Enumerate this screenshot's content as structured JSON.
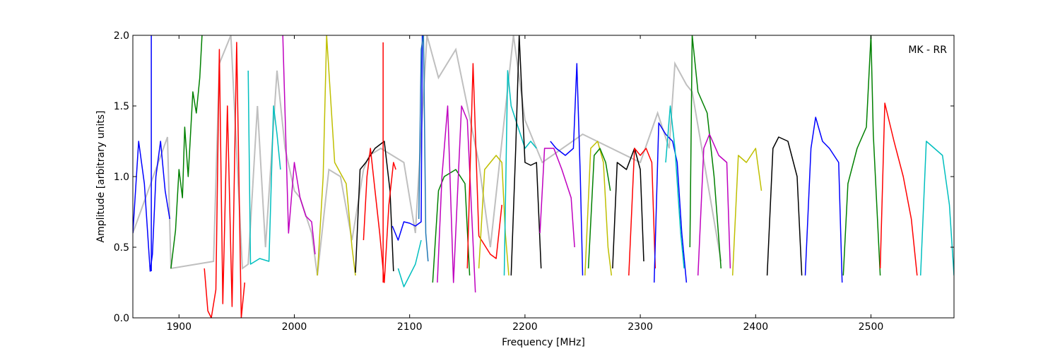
{
  "chart_data": {
    "type": "line",
    "title": "",
    "annotation": "MK - RR",
    "xlabel": "Frequency [MHz]",
    "ylabel": "Amplitude [arbitrary units]",
    "xlim": [
      1860,
      2572
    ],
    "ylim": [
      0.0,
      2.0
    ],
    "xticks": [
      1900,
      2000,
      2100,
      2200,
      2300,
      2400,
      2500
    ],
    "xtick_labels": [
      "1900",
      "2000",
      "2100",
      "2200",
      "2300",
      "2400",
      "2500"
    ],
    "yticks": [
      0.0,
      0.5,
      1.0,
      1.5,
      2.0
    ],
    "ytick_labels": [
      "0.0",
      "0.5",
      "1.0",
      "1.5",
      "2.0"
    ],
    "grid": false,
    "legend": "none",
    "colors": {
      "reference": "#bfbfbf",
      "b": "#0000ff",
      "g": "#008000",
      "r": "#ff0000",
      "c": "#00bfbf",
      "m": "#bf00bf",
      "y": "#bfbf00",
      "k": "#000000",
      "steel": "#1f77b4"
    },
    "reference_envelope": {
      "name": "",
      "color": "#bfbfbf",
      "x": [
        1860,
        1890,
        1893,
        1930,
        1935,
        1945,
        1955,
        1960,
        1968,
        1975,
        1985,
        1992,
        2000,
        2005,
        2015,
        2020,
        2030,
        2040,
        2050,
        2060,
        2065,
        2075,
        2085,
        2095,
        2105,
        2115,
        2125,
        2140,
        2160,
        2170,
        2190,
        2200,
        2215,
        2250,
        2300,
        2315,
        2325,
        2330,
        2340,
        2345,
        2370
      ],
      "y": [
        0.6,
        1.28,
        0.35,
        0.4,
        1.8,
        2.0,
        0.35,
        0.38,
        1.5,
        0.5,
        1.75,
        1.2,
        0.9,
        0.85,
        0.6,
        0.3,
        1.05,
        1.0,
        0.55,
        1.05,
        1.15,
        1.2,
        1.15,
        1.1,
        0.6,
        2.0,
        1.7,
        1.9,
        1.1,
        0.5,
        2.0,
        1.4,
        1.1,
        1.3,
        1.1,
        1.45,
        1.2,
        1.8,
        1.65,
        1.6,
        0.4
      ]
    },
    "series": [
      {
        "color": "b",
        "x": [
          1860,
          1865,
          1870,
          1875,
          1877,
          1880,
          1884,
          1888,
          1892
        ],
        "y": [
          0.6,
          1.25,
          0.95,
          0.33,
          0.45,
          1.0,
          1.25,
          0.9,
          0.7
        ],
        "spike": [
          1876,
          2.0
        ]
      },
      {
        "color": "g",
        "x": [
          1893,
          1897,
          1900,
          1903,
          1905,
          1908,
          1912,
          1915,
          1918,
          1920
        ],
        "y": [
          0.35,
          0.62,
          1.05,
          0.85,
          1.35,
          1.0,
          1.6,
          1.45,
          1.7,
          2.0
        ]
      },
      {
        "color": "r",
        "x": [
          1922,
          1925,
          1928,
          1932,
          1935,
          1938,
          1942,
          1946,
          1950,
          1954,
          1957
        ],
        "y": [
          0.35,
          0.05,
          0.0,
          0.2,
          1.9,
          0.1,
          1.5,
          0.08,
          1.95,
          0.0,
          0.25
        ]
      },
      {
        "color": "c",
        "x": [
          1960,
          1962,
          1970,
          1978,
          1982,
          1985,
          1988
        ],
        "y": [
          1.75,
          0.38,
          0.42,
          0.4,
          1.5,
          1.3,
          1.05
        ]
      },
      {
        "color": "m",
        "x": [
          1990,
          1995,
          2000,
          2005,
          2010,
          2015,
          2018
        ],
        "y": [
          2.0,
          0.6,
          1.1,
          0.85,
          0.72,
          0.68,
          0.45
        ]
      },
      {
        "color": "y",
        "x": [
          2020,
          2025,
          2028,
          2035,
          2045,
          2050,
          2053
        ],
        "y": [
          0.3,
          1.0,
          2.0,
          1.1,
          0.95,
          0.5,
          0.3
        ]
      },
      {
        "color": "k",
        "x": [
          2053,
          2057,
          2062,
          2070,
          2078,
          2083,
          2086
        ],
        "y": [
          0.32,
          1.05,
          1.1,
          1.2,
          1.25,
          0.9,
          0.33
        ]
      },
      {
        "color": "r",
        "x": [
          2060,
          2063,
          2066,
          2070,
          2074,
          2078,
          2082,
          2086,
          2088
        ],
        "y": [
          0.55,
          1.0,
          1.2,
          0.9,
          0.6,
          0.25,
          0.8,
          1.1,
          1.05
        ],
        "spike": [
          2077,
          1.95
        ]
      },
      {
        "color": "b",
        "x": [
          2085,
          2090,
          2095,
          2100,
          2105,
          2110,
          2111
        ],
        "y": [
          0.65,
          0.55,
          0.68,
          0.67,
          0.65,
          0.68,
          2.0
        ]
      },
      {
        "color": "c",
        "x": [
          2090,
          2095,
          2100,
          2105,
          2110
        ],
        "y": [
          0.35,
          0.22,
          0.3,
          0.38,
          0.55
        ]
      },
      {
        "color": "steel",
        "x": [
          2108,
          2110,
          2112,
          2114,
          2116
        ],
        "y": [
          0.7,
          1.9,
          2.0,
          0.6,
          0.4
        ]
      },
      {
        "color": "g",
        "x": [
          2120,
          2125,
          2130,
          2140,
          2148,
          2152
        ],
        "y": [
          0.25,
          0.9,
          1.0,
          1.05,
          0.95,
          0.3
        ]
      },
      {
        "color": "m",
        "x": [
          2124,
          2128,
          2133,
          2138,
          2145,
          2150,
          2157
        ],
        "y": [
          0.25,
          1.0,
          1.5,
          0.25,
          1.5,
          1.4,
          0.18
        ]
      },
      {
        "color": "r",
        "x": [
          2150,
          2155,
          2160,
          2170,
          2175,
          2180
        ],
        "y": [
          0.35,
          1.8,
          0.58,
          0.45,
          0.42,
          0.8
        ]
      },
      {
        "color": "y",
        "x": [
          2160,
          2165,
          2170,
          2175,
          2180,
          2183,
          2186
        ],
        "y": [
          0.35,
          1.05,
          1.1,
          1.15,
          1.1,
          0.6,
          0.3
        ]
      },
      {
        "color": "c",
        "x": [
          2182,
          2185,
          2188,
          2192,
          2196,
          2200,
          2205,
          2210
        ],
        "y": [
          0.3,
          1.75,
          1.5,
          1.4,
          1.3,
          1.2,
          1.25,
          1.2
        ]
      },
      {
        "color": "k",
        "x": [
          2188,
          2192,
          2195,
          2200,
          2205,
          2210,
          2214
        ],
        "y": [
          0.3,
          1.2,
          2.0,
          1.1,
          1.08,
          1.1,
          0.35
        ]
      },
      {
        "color": "m",
        "x": [
          2213,
          2217,
          2225,
          2232,
          2240,
          2243
        ],
        "y": [
          0.6,
          1.2,
          1.2,
          1.05,
          0.85,
          0.5
        ]
      },
      {
        "color": "b",
        "x": [
          2222,
          2227,
          2235,
          2242,
          2245,
          2248,
          2250
        ],
        "y": [
          1.25,
          1.2,
          1.15,
          1.2,
          1.8,
          1.0,
          0.3
        ]
      },
      {
        "color": "y",
        "x": [
          2252,
          2257,
          2263,
          2268,
          2272,
          2275
        ],
        "y": [
          0.3,
          1.2,
          1.25,
          1.1,
          0.5,
          0.3
        ]
      },
      {
        "color": "g",
        "x": [
          2255,
          2260,
          2265,
          2270,
          2274
        ],
        "y": [
          0.35,
          1.15,
          1.2,
          1.1,
          0.9
        ]
      },
      {
        "color": "k",
        "x": [
          2276,
          2280,
          2288,
          2295,
          2300,
          2303
        ],
        "y": [
          0.35,
          1.1,
          1.05,
          1.2,
          1.05,
          0.4
        ]
      },
      {
        "color": "r",
        "x": [
          2290,
          2295,
          2300,
          2305,
          2310,
          2313
        ],
        "y": [
          0.3,
          1.2,
          1.15,
          1.2,
          1.1,
          0.35
        ]
      },
      {
        "color": "b",
        "x": [
          2312,
          2316,
          2322,
          2328,
          2332,
          2336,
          2340
        ],
        "y": [
          0.25,
          1.38,
          1.3,
          1.25,
          1.1,
          0.6,
          0.25
        ]
      },
      {
        "color": "c",
        "x": [
          2322,
          2326,
          2330,
          2335,
          2338
        ],
        "y": [
          1.1,
          1.5,
          1.2,
          0.6,
          0.35
        ]
      },
      {
        "color": "g",
        "x": [
          2343,
          2345,
          2350,
          2358,
          2364,
          2370
        ],
        "y": [
          0.5,
          2.0,
          1.6,
          1.45,
          1.0,
          0.35
        ]
      },
      {
        "color": "m",
        "x": [
          2350,
          2355,
          2360,
          2368,
          2375,
          2378
        ],
        "y": [
          0.3,
          1.2,
          1.3,
          1.15,
          1.1,
          0.35
        ]
      },
      {
        "color": "y",
        "x": [
          2380,
          2385,
          2392,
          2400,
          2405
        ],
        "y": [
          0.3,
          1.15,
          1.1,
          1.2,
          0.9
        ]
      },
      {
        "color": "k",
        "x": [
          2410,
          2415,
          2420,
          2428,
          2436,
          2440
        ],
        "y": [
          0.3,
          1.2,
          1.28,
          1.25,
          1.0,
          0.3
        ]
      },
      {
        "color": "b",
        "x": [
          2443,
          2448,
          2452,
          2458,
          2464,
          2472,
          2475
        ],
        "y": [
          0.3,
          1.2,
          1.42,
          1.25,
          1.2,
          1.1,
          0.25
        ]
      },
      {
        "color": "g",
        "x": [
          2476,
          2480,
          2488,
          2496,
          2500,
          2502,
          2508
        ],
        "y": [
          0.3,
          0.95,
          1.2,
          1.35,
          2.0,
          1.3,
          0.3
        ]
      },
      {
        "color": "r",
        "x": [
          2508,
          2512,
          2520,
          2528,
          2535,
          2540
        ],
        "y": [
          0.35,
          1.52,
          1.25,
          1.0,
          0.7,
          0.3
        ]
      },
      {
        "color": "c",
        "x": [
          2543,
          2548,
          2555,
          2562,
          2568,
          2572
        ],
        "y": [
          0.3,
          1.25,
          1.2,
          1.15,
          0.8,
          0.3
        ]
      }
    ]
  }
}
